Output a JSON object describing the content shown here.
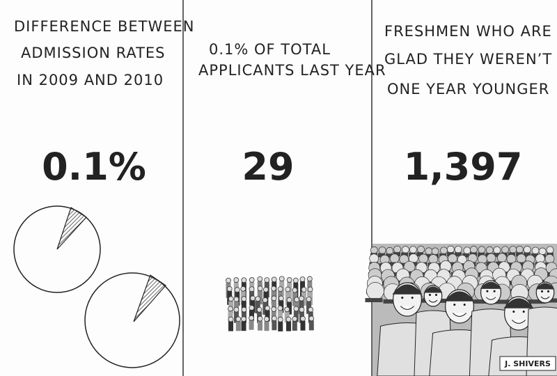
{
  "panels": [
    {
      "caption": [
        "DIFFERENCE BETWEEN",
        "ADMISSION RATES",
        "IN 2009 AND 2010"
      ],
      "figure": "0.1%"
    },
    {
      "caption": [
        "0.1% OF TOTAL",
        "APPLICANTS LAST YEAR"
      ],
      "figure": "29"
    },
    {
      "caption": [
        "FRESHMEN WHO ARE",
        "GLAD THEY WEREN’T",
        "ONE YEAR YOUNGER"
      ],
      "figure": "1,397"
    }
  ],
  "signature": "J. SHIVERS"
}
